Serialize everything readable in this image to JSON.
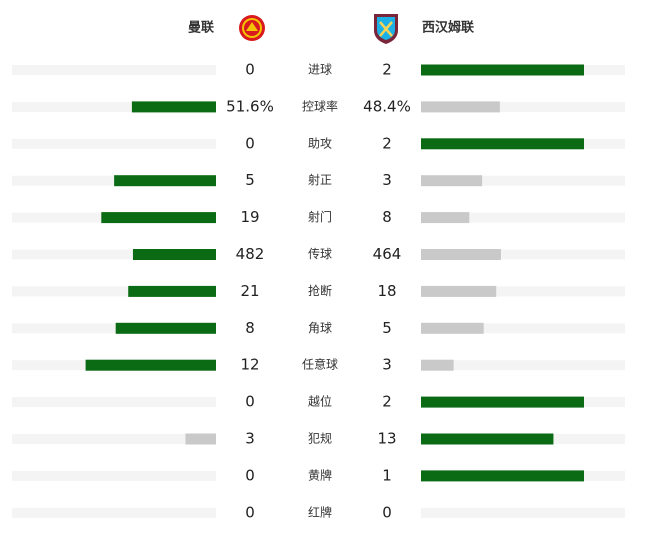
{
  "header": {
    "home_team": "曼联",
    "away_team": "西汉姆联"
  },
  "stats": [
    {
      "label": "进球",
      "home": 0,
      "away": 2
    },
    {
      "label": "控球率",
      "home": 51.6,
      "away": 48.4,
      "home_label": "51.6%",
      "away_label": "48.4%"
    },
    {
      "label": "助攻",
      "home": 0,
      "away": 2
    },
    {
      "label": "射正",
      "home": 5,
      "away": 3
    },
    {
      "label": "射门",
      "home": 19,
      "away": 8
    },
    {
      "label": "传球",
      "home": 482,
      "away": 464
    },
    {
      "label": "抢断",
      "home": 21,
      "away": 18
    },
    {
      "label": "角球",
      "home": 8,
      "away": 5
    },
    {
      "label": "任意球",
      "home": 12,
      "away": 3
    },
    {
      "label": "越位",
      "home": 0,
      "away": 2
    },
    {
      "label": "犯规",
      "home": 3,
      "away": 13
    },
    {
      "label": "黄牌",
      "home": 0,
      "away": 1
    },
    {
      "label": "红牌",
      "home": 0,
      "away": 0
    }
  ]
}
